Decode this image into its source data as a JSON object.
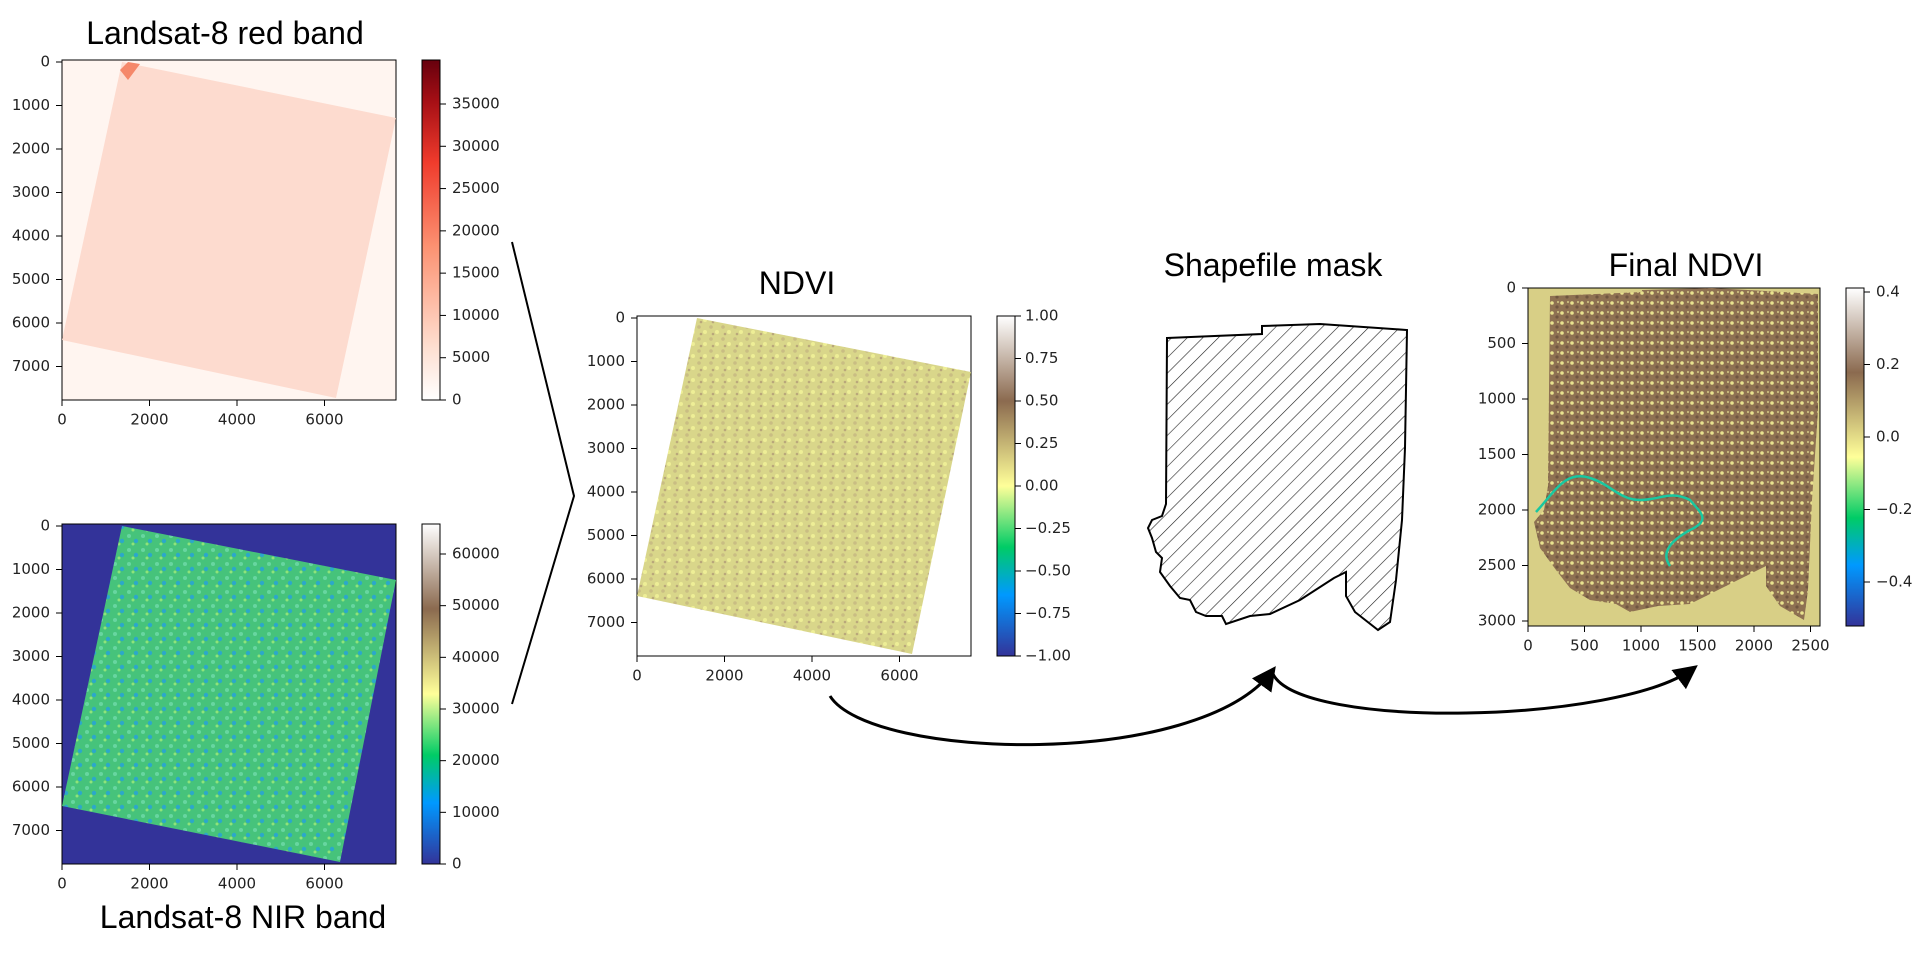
{
  "panels": {
    "red_band": {
      "title": "Landsat-8 red band",
      "y_ticks": [
        "0",
        "1000",
        "2000",
        "3000",
        "4000",
        "5000",
        "6000",
        "7000"
      ],
      "x_ticks": [
        "0",
        "2000",
        "4000",
        "6000"
      ],
      "colorbar_ticks": [
        "35000",
        "30000",
        "25000",
        "20000",
        "15000",
        "10000",
        "5000",
        "0"
      ],
      "colormap": [
        "#ffffff",
        "#fee0d2",
        "#fc9272",
        "#ef3b2c",
        "#a50f15",
        "#67000d"
      ]
    },
    "nir_band": {
      "title": "Landsat-8 NIR band",
      "y_ticks": [
        "0",
        "1000",
        "2000",
        "3000",
        "4000",
        "5000",
        "6000",
        "7000"
      ],
      "x_ticks": [
        "0",
        "2000",
        "4000",
        "6000"
      ],
      "colorbar_ticks": [
        "60000",
        "50000",
        "40000",
        "30000",
        "20000",
        "10000",
        "0"
      ],
      "colormap": [
        "#333399",
        "#0099ff",
        "#00cc66",
        "#ffff99",
        "#9a7c5c",
        "#ffffff"
      ]
    },
    "ndvi": {
      "title": "NDVI",
      "y_ticks": [
        "0",
        "1000",
        "2000",
        "3000",
        "4000",
        "5000",
        "6000",
        "7000"
      ],
      "x_ticks": [
        "0",
        "2000",
        "4000",
        "6000"
      ],
      "colorbar_ticks": [
        "1.00",
        "0.75",
        "0.50",
        "0.25",
        "0.00",
        "−0.25",
        "−0.50",
        "−0.75",
        "−1.00"
      ],
      "colormap": [
        "#333399",
        "#0099ff",
        "#00cc66",
        "#ffff99",
        "#8b6a4f",
        "#ffffff"
      ]
    },
    "shapefile_mask": {
      "title": "Shapefile mask"
    },
    "final_ndvi": {
      "title": "Final NDVI",
      "y_ticks": [
        "0",
        "500",
        "1000",
        "1500",
        "2000",
        "2500",
        "3000"
      ],
      "x_ticks": [
        "0",
        "500",
        "1000",
        "1500",
        "2000",
        "2500"
      ],
      "colorbar_ticks": [
        "0.4",
        "0.2",
        "0.0",
        "−0.2",
        "−0.4"
      ],
      "colormap": [
        "#333399",
        "#0099ff",
        "#00cc66",
        "#ffff99",
        "#8b6a4f",
        "#ffffff"
      ]
    }
  },
  "colors": {
    "red_scene": "#fddbcf",
    "nir_background": "#333399",
    "nir_scene": "#3fbf7f",
    "ndvi_scene": "#d9d68a",
    "final_background": "#d8cf86",
    "final_scene": "#8e7152"
  }
}
